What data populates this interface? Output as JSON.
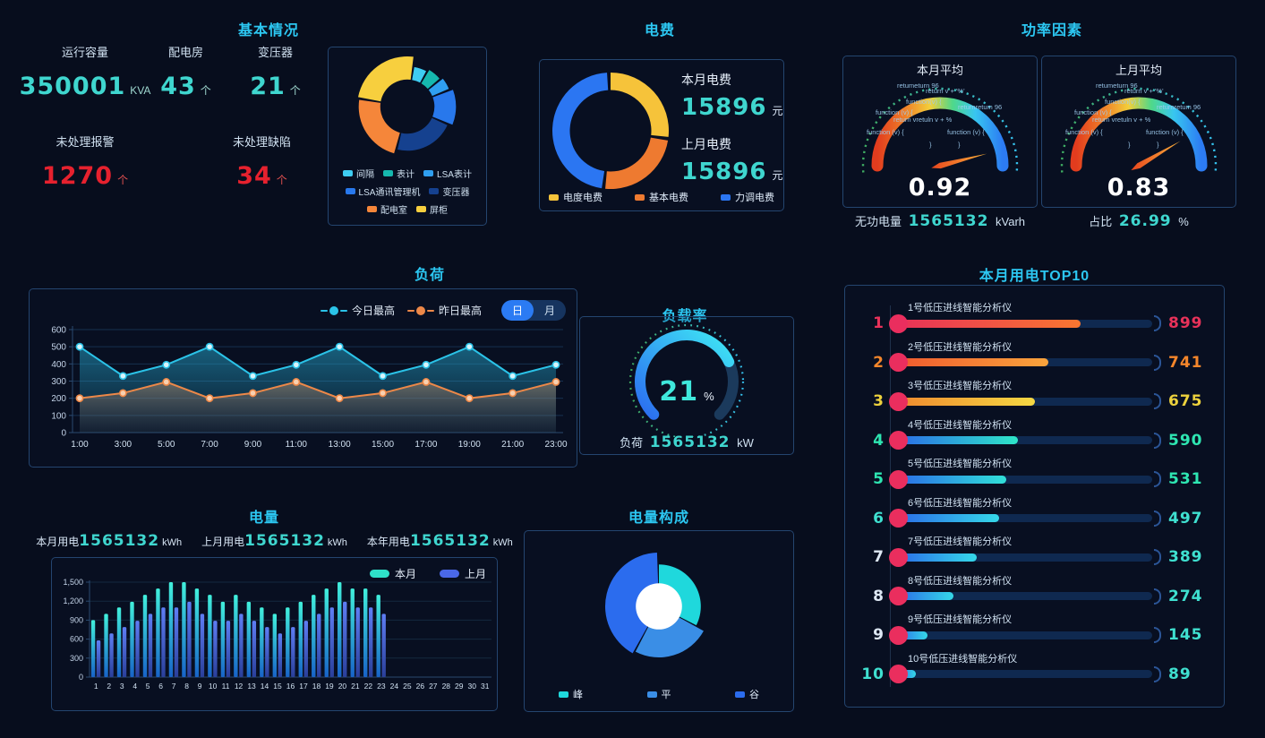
{
  "panels": {
    "basic": {
      "title": "基本情况",
      "stats": [
        {
          "label": "运行容量",
          "value": "350001",
          "unit": "KVA"
        },
        {
          "label": "配电房",
          "value": "43",
          "unit": "个"
        },
        {
          "label": "变压器",
          "value": "21",
          "unit": "个"
        },
        {
          "label": "未处理报警",
          "value": "1270",
          "unit": "个"
        },
        {
          "label": "未处理缺陷",
          "value": "34",
          "unit": "个"
        }
      ]
    },
    "fee": {
      "title": "电费",
      "rows": [
        {
          "label": "本月电费",
          "value": "15896",
          "unit": "元"
        },
        {
          "label": "上月电费",
          "value": "15896",
          "unit": "元"
        }
      ]
    },
    "power_factor": {
      "title": "功率因素",
      "gauge_month_title": "本月平均",
      "gauge_month_value": "0.92",
      "gauge_last_title": "上月平均",
      "gauge_last_value": "0.83",
      "stat_month": {
        "label": "无功电量",
        "value": "1565132",
        "unit": "kVarh"
      },
      "stat_last": {
        "label": "占比",
        "value": "26.99",
        "unit": "%"
      },
      "glitch_lines": [
        "function (v) {",
        "return v + '%'",
        "function(v) {",
        "function (v) {",
        "function (v) {",
        "return vretuln v + %",
        "returnretum 96",
        "retumeturn 96",
        "}",
        "}"
      ]
    },
    "load": {
      "title": "负荷",
      "toggle_day": "日",
      "toggle_month": "月"
    },
    "load_rate": {
      "title": "负载率",
      "value": "21",
      "unit": "%",
      "stat": {
        "label": "负荷",
        "value": "1565132",
        "unit": "kW"
      }
    },
    "top10": {
      "title": "本月用电TOP10"
    },
    "energy": {
      "title": "电量",
      "stats": [
        {
          "label": "本月用电",
          "value": "1565132",
          "unit": "kWh"
        },
        {
          "label": "上月用电",
          "value": "1565132",
          "unit": "kWh"
        },
        {
          "label": "本年用电",
          "value": "1565132",
          "unit": "kWh"
        }
      ]
    },
    "composition": {
      "title": "电量构成"
    }
  },
  "chart_data": [
    {
      "id": "basic_donut",
      "type": "pie",
      "title": "基本情况",
      "legend_position": "bottom",
      "start": 10,
      "gap": 3,
      "hole": 0.54,
      "segments": [
        {
          "label": "间隔",
          "color": "#3ecdf2",
          "pct": 5.3,
          "r": 0.8
        },
        {
          "label": "表计",
          "color": "#16b8ae",
          "pct": 5.3,
          "r": 0.85
        },
        {
          "label": "LSA表计",
          "color": "#2f9ff0",
          "pct": 4.4,
          "r": 0.9
        },
        {
          "label": "LSA通讯管理机",
          "color": "#2878ec",
          "pct": 12.4,
          "r": 0.97
        },
        {
          "label": "变压器",
          "color": "#15418f",
          "pct": 23.0,
          "r": 0.88
        },
        {
          "label": "配电室",
          "color": "#f5863a",
          "pct": 24.2,
          "r": 0.97
        },
        {
          "label": "屏柜",
          "color": "#f7cf3e",
          "pct": 25.4,
          "r": 1.0
        }
      ]
    },
    {
      "id": "fee_donut",
      "type": "pie",
      "title": "电费",
      "legend_position": "bottom",
      "start": 0,
      "gap": 3.5,
      "hole": 0.7,
      "segments": [
        {
          "label": "电度电费",
          "color": "#f6c33a",
          "pct": 27.5,
          "r": 1.0
        },
        {
          "label": "基本电费",
          "color": "#ee7a30",
          "pct": 24.5,
          "r": 1.0
        },
        {
          "label": "力调电费",
          "color": "#2b76f2",
          "pct": 48.0,
          "r": 1.0
        }
      ]
    },
    {
      "id": "pf_gauge_month",
      "type": "gauge",
      "title": "本月平均",
      "value": 0.92,
      "min": 0,
      "max": 1
    },
    {
      "id": "pf_gauge_last",
      "type": "gauge",
      "title": "上月平均",
      "value": 0.83,
      "min": 0,
      "max": 1
    },
    {
      "id": "load_line",
      "type": "line",
      "title": "负荷",
      "ylim": [
        0,
        600
      ],
      "yticks": [
        0,
        100,
        200,
        300,
        400,
        500,
        600
      ],
      "grid": true,
      "legend_position": "top-right",
      "categories": [
        "1:00",
        "3:00",
        "5:00",
        "7:00",
        "9:00",
        "11:00",
        "13:00",
        "15:00",
        "17:00",
        "19:00",
        "21:00",
        "23:00"
      ],
      "series": [
        {
          "name": "今日最高",
          "color": "#2bc3e8",
          "values": [
            500,
            330,
            395,
            500,
            330,
            395,
            500,
            330,
            395,
            500,
            330,
            395
          ]
        },
        {
          "name": "昨日最高",
          "color": "#ed8848",
          "values": [
            200,
            230,
            295,
            200,
            230,
            295,
            200,
            230,
            295,
            200,
            230,
            295
          ]
        }
      ]
    },
    {
      "id": "load_rate_gauge",
      "type": "gauge",
      "title": "负载率",
      "value": 21,
      "min": 0,
      "max": 100,
      "unit": "%"
    },
    {
      "id": "top10",
      "type": "bar",
      "title": "本月用电TOP10",
      "max_scale": 1250,
      "items": [
        {
          "rank": "1",
          "label": "1号低压进线智能分析仪",
          "value": 899,
          "rank_color": "#e8325a",
          "value_color": "#e8325a",
          "bar": [
            "#e83158",
            "#f97730"
          ]
        },
        {
          "rank": "2",
          "label": "2号低压进线智能分析仪",
          "value": 741,
          "rank_color": "#f5862b",
          "value_color": "#f5862b",
          "bar": [
            "#ef5a2e",
            "#f9a43c"
          ]
        },
        {
          "rank": "3",
          "label": "3号低压进线智能分析仪",
          "value": 675,
          "rank_color": "#edd23d",
          "value_color": "#edd23d",
          "bar": [
            "#f08a2e",
            "#f5d843"
          ]
        },
        {
          "rank": "4",
          "label": "4号低压进线智能分析仪",
          "value": 590,
          "rank_color": "#2ee6b2",
          "value_color": "#2ee6b2",
          "bar": [
            "#2b6de8",
            "#2ee6c8"
          ]
        },
        {
          "rank": "5",
          "label": "5号低压进线智能分析仪",
          "value": 531,
          "rank_color": "#2ee6b2",
          "value_color": "#2ee6b2",
          "bar": [
            "#2b6de8",
            "#30e0d8"
          ]
        },
        {
          "rank": "6",
          "label": "6号低压进线智能分析仪",
          "value": 497,
          "rank_color": "#3fe0d0",
          "value_color": "#3fe0d0",
          "bar": [
            "#2b6de8",
            "#35d8e8"
          ]
        },
        {
          "rank": "7",
          "label": "7号低压进线智能分析仪",
          "value": 389,
          "rank_color": "#dfe9f5",
          "value_color": "#3fe0d0",
          "bar": [
            "#2b6de8",
            "#35d8e8"
          ]
        },
        {
          "rank": "8",
          "label": "8号低压进线智能分析仪",
          "value": 274,
          "rank_color": "#dfe9f5",
          "value_color": "#3fe0d0",
          "bar": [
            "#2b6de8",
            "#35d8e8"
          ]
        },
        {
          "rank": "9",
          "label": "9号低压进线智能分析仪",
          "value": 145,
          "rank_color": "#dfe9f5",
          "value_color": "#3fe0d0",
          "bar": [
            "#2b6de8",
            "#35d8e8"
          ]
        },
        {
          "rank": "10",
          "label": "10号低压进线智能分析仪",
          "value": 89,
          "rank_color": "#3fe0d0",
          "value_color": "#3fe0d0",
          "bar": [
            "#2b6de8",
            "#35d8e8"
          ]
        }
      ]
    },
    {
      "id": "energy_bars",
      "type": "bar",
      "title": "电量",
      "ylim": [
        0,
        1500
      ],
      "grid": true,
      "legend_position": "top-right",
      "yticks": [
        "0",
        "300",
        "600",
        "900",
        "1,200",
        "1,500"
      ],
      "categories": [
        "1",
        "2",
        "3",
        "4",
        "5",
        "6",
        "7",
        "8",
        "9",
        "10",
        "11",
        "12",
        "13",
        "14",
        "15",
        "16",
        "17",
        "18",
        "19",
        "20",
        "21",
        "22",
        "23",
        "24",
        "25",
        "26",
        "27",
        "28",
        "29",
        "30",
        "31"
      ],
      "series": [
        {
          "name": "本月",
          "color": "#2ee0c8",
          "values": [
            900,
            1000,
            1100,
            1190,
            1300,
            1400,
            1500,
            1500,
            1400,
            1300,
            1190,
            1300,
            1190,
            1100,
            1000,
            1100,
            1190,
            1300,
            1400,
            1500,
            1400,
            1400,
            1300,
            0,
            0,
            0,
            0,
            0,
            0,
            0,
            0
          ]
        },
        {
          "name": "上月",
          "color": "#4a68e8",
          "values": [
            580,
            690,
            790,
            890,
            1000,
            1100,
            1100,
            1190,
            1000,
            890,
            890,
            1000,
            890,
            790,
            690,
            790,
            890,
            1000,
            1100,
            1190,
            1100,
            1100,
            1000,
            0,
            0,
            0,
            0,
            0,
            0,
            0,
            0
          ]
        }
      ]
    },
    {
      "id": "composition_rose",
      "type": "pie",
      "title": "电量构成",
      "legend_position": "bottom",
      "start": 0,
      "gap": 2,
      "hole": 0.43,
      "segments": [
        {
          "label": "峰",
          "color": "#1fd8dc",
          "pct": 33,
          "r": 0.78
        },
        {
          "label": "平",
          "color": "#3a8ee6",
          "pct": 25,
          "r": 0.95
        },
        {
          "label": "谷",
          "color": "#2b6cee",
          "pct": 42,
          "r": 1.0
        }
      ]
    }
  ]
}
